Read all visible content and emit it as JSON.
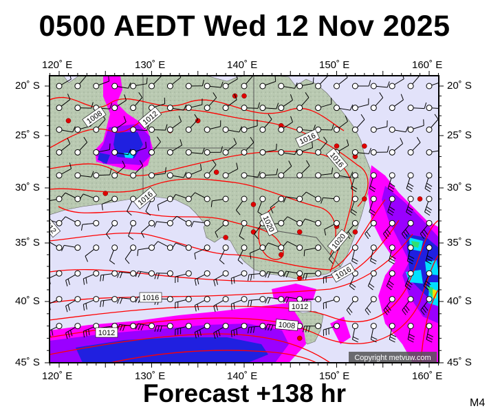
{
  "header": {
    "title": "0500 AEDT Wed 12 Nov 2025"
  },
  "footer": {
    "forecast": "Forecast +138 hr",
    "model": "M4"
  },
  "map": {
    "copyright": "Copyright metvuw.com",
    "lon_labels": [
      "120˚ E",
      "130˚ E",
      "140˚ E",
      "150˚ E",
      "160˚ E"
    ],
    "lat_labels": [
      "20˚ S",
      "25˚ S",
      "30˚ S",
      "35˚ S",
      "40˚ S",
      "45˚ S"
    ],
    "isobar_labels": [
      "1008",
      "1012",
      "1016",
      "1016",
      "1016",
      "1020",
      "1020",
      "1016",
      "1016",
      "1012",
      "1008",
      "1012",
      "1012"
    ],
    "colors": {
      "ocean": "#e2e2fa",
      "land": "#b9c9b1",
      "isobar": "#ff0000",
      "rain_light": "#ff00ff",
      "rain_medium": "#9a00ff",
      "rain_heavy": "#2020e0",
      "rain_very_heavy": "#00e0ff",
      "rain_extreme": "#f0e000",
      "station_dot": "#e00000"
    }
  }
}
